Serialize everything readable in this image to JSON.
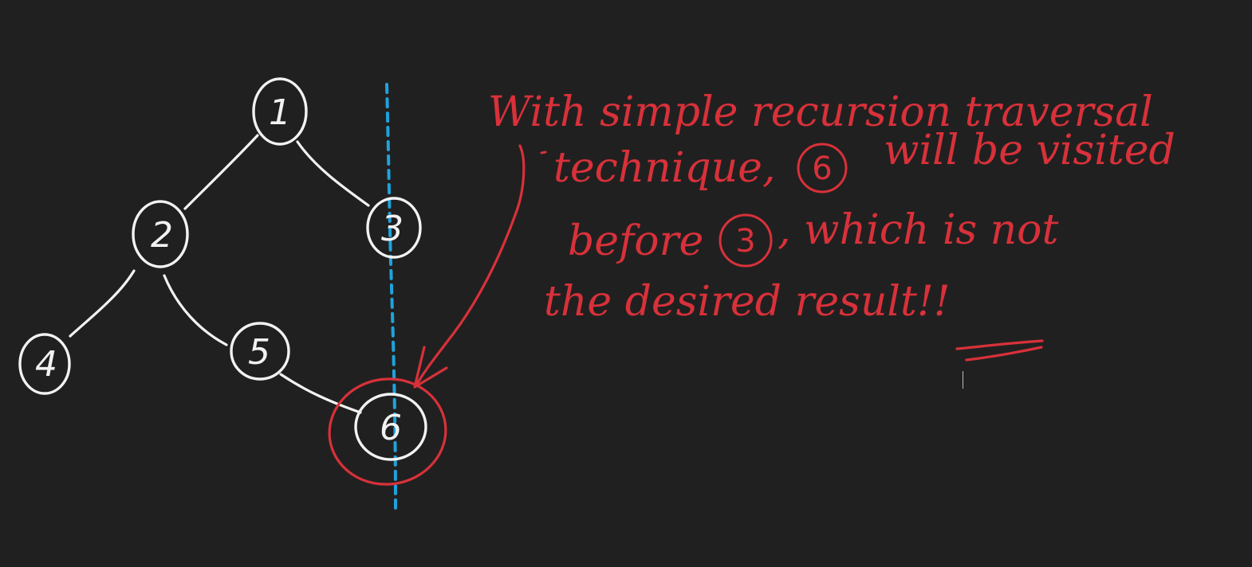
{
  "diagram": {
    "tree": {
      "nodes": [
        {
          "id": "1",
          "label": "1"
        },
        {
          "id": "2",
          "label": "2"
        },
        {
          "id": "3",
          "label": "3"
        },
        {
          "id": "4",
          "label": "4"
        },
        {
          "id": "5",
          "label": "5"
        },
        {
          "id": "6",
          "label": "6"
        }
      ],
      "edges": [
        {
          "from": "1",
          "to": "2"
        },
        {
          "from": "1",
          "to": "3"
        },
        {
          "from": "2",
          "to": "4"
        },
        {
          "from": "2",
          "to": "5"
        },
        {
          "from": "5",
          "to": "6"
        }
      ],
      "highlighted_node": "6"
    },
    "note": {
      "line1": "With simple recursion traversal",
      "line2_prefix": "technique,",
      "line2_circled": "6",
      "line2_suffix": "will be visited",
      "line3_prefix": "before",
      "line3_circled": "3",
      "line3_suffix": ", which is not",
      "line4": "the desired result!!"
    },
    "colors": {
      "background": "#212020",
      "tree_ink": "#f2f2f2",
      "annotation_ink": "#d8313a",
      "vertical_guide": "#1fa3dc"
    }
  }
}
